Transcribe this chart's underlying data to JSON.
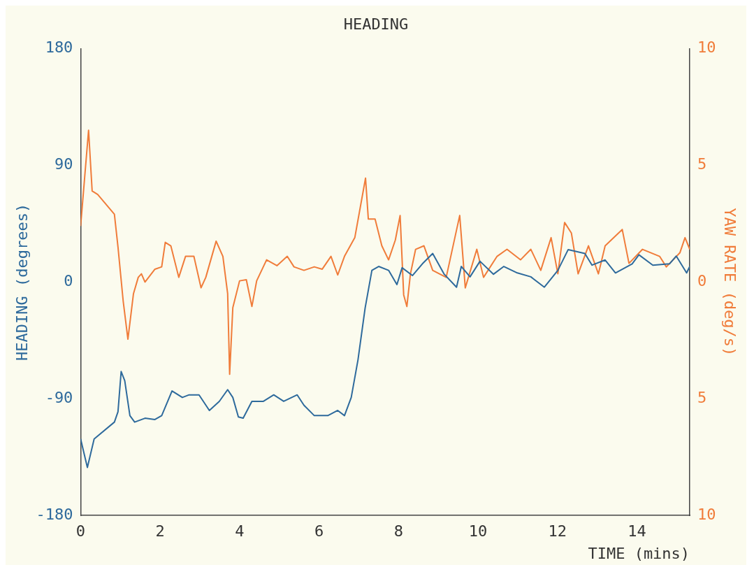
{
  "chart_data": {
    "type": "line",
    "title": "HEADING",
    "xlabel": "TIME (mins)",
    "ylabel": "HEADING (degrees)",
    "y2label": "YAW RATE (deg/s)",
    "xlim": [
      0,
      15.33
    ],
    "xticks": [
      0,
      2,
      4,
      6,
      8,
      10,
      12,
      14
    ],
    "ylim": [
      -180,
      180
    ],
    "yticks": [
      -180,
      -90,
      0,
      90,
      180
    ],
    "y2lim": [
      -10,
      10
    ],
    "y2ticks": [
      {
        "value": -10,
        "label": "10"
      },
      {
        "value": -5,
        "label": "5"
      },
      0,
      {
        "value": 5,
        "label": "5"
      },
      {
        "value": 10,
        "label": "10"
      }
    ],
    "grid": false,
    "legend": false,
    "marker": "none",
    "line_style": "solid",
    "series": [
      {
        "color": "#2e6a9c",
        "x": [
          0,
          0.17,
          0.34,
          0.85,
          0.94,
          1.02,
          1.11,
          1.24,
          1.36,
          1.62,
          1.87,
          2.04,
          2.3,
          2.56,
          2.73,
          2.98,
          3.24,
          3.49,
          3.7,
          3.83,
          3.97,
          4.09,
          4.31,
          4.6,
          4.86,
          5.11,
          5.45,
          5.62,
          5.88,
          6.22,
          6.47,
          6.64,
          6.81,
          6.98,
          7.16,
          7.33,
          7.5,
          7.75,
          7.96,
          8.09,
          8.35,
          8.6,
          8.86,
          9.15,
          9.46,
          9.58,
          9.8,
          10.05,
          10.39,
          10.65,
          10.99,
          11.33,
          11.67,
          12.01,
          12.27,
          12.69,
          12.87,
          13.2,
          13.46,
          13.88,
          14.05,
          14.4,
          14.82,
          14.99,
          15.25,
          15.33
        ],
        "values": [
          -121,
          -143,
          -121,
          -108,
          -100,
          -69,
          -76,
          -103,
          -108,
          -105,
          -106,
          -103,
          -84,
          -89,
          -87,
          -87,
          -99,
          -92,
          -83,
          -89,
          -104,
          -105,
          -92,
          -92,
          -87,
          -92,
          -87,
          -95,
          -103,
          -103,
          -99,
          -103,
          -89,
          -60,
          -20,
          9,
          12,
          9,
          -2,
          11,
          5,
          14,
          22,
          6,
          -4,
          12,
          4,
          16,
          6,
          12,
          7,
          4,
          -4,
          9,
          25,
          22,
          13,
          17,
          7,
          14,
          21,
          13,
          14,
          20,
          7,
          12
        ]
      },
      {
        "color": "#f07c3a",
        "axis": "y2",
        "x": [
          0,
          0.2,
          0.29,
          0.43,
          0.85,
          0.94,
          1.07,
          1.19,
          1.33,
          1.45,
          1.53,
          1.62,
          1.87,
          2.04,
          2.13,
          2.27,
          2.47,
          2.64,
          2.85,
          3.03,
          3.15,
          3.41,
          3.58,
          3.7,
          3.75,
          3.83,
          4.0,
          4.17,
          4.31,
          4.43,
          4.68,
          4.94,
          5.2,
          5.37,
          5.62,
          5.88,
          6.08,
          6.3,
          6.47,
          6.64,
          6.9,
          7.17,
          7.24,
          7.41,
          7.58,
          7.75,
          7.92,
          8.04,
          8.13,
          8.21,
          8.3,
          8.43,
          8.64,
          8.86,
          9.2,
          9.54,
          9.68,
          9.97,
          10.14,
          10.48,
          10.73,
          11.07,
          11.33,
          11.58,
          11.84,
          12.01,
          12.18,
          12.35,
          12.52,
          12.78,
          13.03,
          13.2,
          13.63,
          13.8,
          14.14,
          14.57,
          14.74,
          15.08,
          15.21,
          15.33
        ],
        "values": [
          2.4,
          6.5,
          3.9,
          3.75,
          2.9,
          1.5,
          -0.8,
          -2.45,
          -0.5,
          0.2,
          0.35,
          0,
          0.55,
          0.65,
          1.7,
          1.55,
          0.2,
          1.1,
          1.1,
          -0.25,
          0.2,
          1.75,
          1.1,
          -0.5,
          -3.95,
          -1.1,
          0.05,
          0.1,
          -1.05,
          0.05,
          0.95,
          0.7,
          1.1,
          0.65,
          0.5,
          0.65,
          0.55,
          1.1,
          0.3,
          1.1,
          1.9,
          4.45,
          2.7,
          2.7,
          1.55,
          0.95,
          1.8,
          2.85,
          -0.55,
          -1.05,
          0.35,
          1.4,
          1.55,
          0.5,
          0.2,
          2.85,
          -0.25,
          1.4,
          0.2,
          1.1,
          1.4,
          0.95,
          1.4,
          0.5,
          1.9,
          0.35,
          2.55,
          2.1,
          0.35,
          1.55,
          0.35,
          1.55,
          2.25,
          0.8,
          1.4,
          1.1,
          0.65,
          1.25,
          1.9,
          1.4
        ]
      }
    ]
  }
}
